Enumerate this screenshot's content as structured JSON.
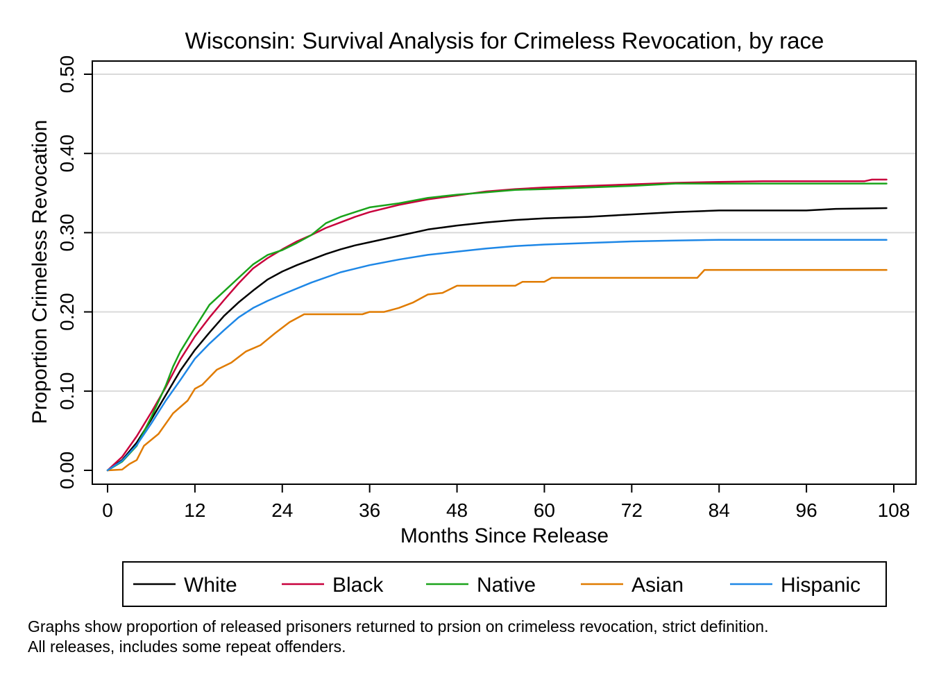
{
  "chart_data": {
    "type": "line",
    "title": "Wisconsin: Survival Analysis for Crimeless Revocation, by race",
    "xlabel": "Months Since Release",
    "ylabel": "Proportion Crimeless Revocation",
    "xlim": [
      0,
      108
    ],
    "ylim": [
      0,
      0.5
    ],
    "x_ticks": [
      0,
      12,
      24,
      36,
      48,
      60,
      72,
      84,
      96,
      108
    ],
    "x_tick_labels": [
      "0",
      "12",
      "24",
      "36",
      "48",
      "60",
      "72",
      "84",
      "96",
      "108"
    ],
    "y_ticks": [
      0,
      0.1,
      0.2,
      0.3,
      0.4,
      0.5
    ],
    "y_tick_labels": [
      "0.00",
      "0.10",
      "0.20",
      "0.30",
      "0.40",
      "0.50"
    ],
    "grid": "horizontal",
    "legend_position": "bottom",
    "series": [
      {
        "name": "White",
        "color": "#000000",
        "x": [
          0,
          2,
          4,
          6,
          8,
          10,
          12,
          14,
          16,
          18,
          20,
          22,
          24,
          26,
          28,
          30,
          32,
          34,
          36,
          40,
          44,
          48,
          52,
          56,
          60,
          66,
          72,
          78,
          84,
          90,
          96,
          100,
          107
        ],
        "y": [
          0,
          0.013,
          0.035,
          0.064,
          0.095,
          0.126,
          0.152,
          0.174,
          0.195,
          0.212,
          0.227,
          0.241,
          0.251,
          0.259,
          0.266,
          0.273,
          0.279,
          0.284,
          0.288,
          0.296,
          0.304,
          0.309,
          0.313,
          0.316,
          0.318,
          0.32,
          0.323,
          0.326,
          0.328,
          0.328,
          0.328,
          0.33,
          0.331
        ]
      },
      {
        "name": "Black",
        "color": "#c8003c",
        "x": [
          0,
          2,
          4,
          6,
          8,
          10,
          12,
          14,
          16,
          18,
          20,
          22,
          24,
          26,
          28,
          30,
          32,
          34,
          36,
          40,
          44,
          48,
          52,
          56,
          60,
          66,
          72,
          78,
          84,
          90,
          96,
          104,
          105,
          107
        ],
        "y": [
          0,
          0.017,
          0.043,
          0.073,
          0.105,
          0.14,
          0.169,
          0.193,
          0.215,
          0.236,
          0.255,
          0.268,
          0.279,
          0.289,
          0.297,
          0.306,
          0.313,
          0.32,
          0.326,
          0.335,
          0.342,
          0.347,
          0.352,
          0.355,
          0.357,
          0.359,
          0.361,
          0.363,
          0.364,
          0.365,
          0.365,
          0.365,
          0.367,
          0.367
        ]
      },
      {
        "name": "Native",
        "color": "#1aa31a",
        "x": [
          0,
          2,
          4,
          6,
          8,
          9,
          10,
          12,
          14,
          16,
          18,
          20,
          22,
          24,
          26,
          28,
          30,
          32,
          34,
          36,
          40,
          44,
          48,
          52,
          56,
          60,
          66,
          72,
          78,
          84,
          96,
          107
        ],
        "y": [
          0,
          0.011,
          0.031,
          0.067,
          0.107,
          0.131,
          0.15,
          0.18,
          0.209,
          0.226,
          0.243,
          0.26,
          0.272,
          0.278,
          0.287,
          0.297,
          0.312,
          0.32,
          0.326,
          0.332,
          0.337,
          0.344,
          0.348,
          0.351,
          0.354,
          0.355,
          0.357,
          0.359,
          0.362,
          0.362,
          0.362,
          0.362
        ]
      },
      {
        "name": "Asian",
        "color": "#e07b00",
        "x": [
          0,
          2,
          3,
          4,
          5,
          7,
          9,
          11,
          12,
          13,
          15,
          17,
          19,
          21,
          23,
          25,
          27,
          30,
          33,
          35,
          36,
          38,
          40,
          42,
          44,
          46,
          48,
          52,
          56,
          57,
          60,
          61,
          64,
          70,
          80,
          81,
          82,
          90,
          100,
          107
        ],
        "y": [
          0,
          0.001,
          0.008,
          0.013,
          0.031,
          0.046,
          0.072,
          0.088,
          0.103,
          0.108,
          0.127,
          0.136,
          0.15,
          0.158,
          0.173,
          0.187,
          0.197,
          0.197,
          0.197,
          0.197,
          0.2,
          0.2,
          0.205,
          0.212,
          0.222,
          0.224,
          0.233,
          0.233,
          0.233,
          0.238,
          0.238,
          0.243,
          0.243,
          0.243,
          0.243,
          0.243,
          0.253,
          0.253,
          0.253,
          0.253
        ]
      },
      {
        "name": "Hispanic",
        "color": "#1e87e6",
        "x": [
          0,
          2,
          4,
          6,
          8,
          10,
          12,
          14,
          16,
          18,
          20,
          22,
          24,
          28,
          32,
          36,
          40,
          44,
          48,
          52,
          56,
          60,
          66,
          72,
          78,
          84,
          96,
          107
        ],
        "y": [
          0,
          0.012,
          0.032,
          0.059,
          0.088,
          0.114,
          0.141,
          0.16,
          0.177,
          0.193,
          0.205,
          0.214,
          0.222,
          0.237,
          0.25,
          0.259,
          0.266,
          0.272,
          0.276,
          0.28,
          0.283,
          0.285,
          0.287,
          0.289,
          0.29,
          0.291,
          0.291,
          0.291
        ]
      }
    ]
  },
  "notes": {
    "line1": "Graphs show proportion of released prisoners returned to prsion on crimeless revocation, strict definition.",
    "line2": "All releases, includes some repeat offenders."
  }
}
